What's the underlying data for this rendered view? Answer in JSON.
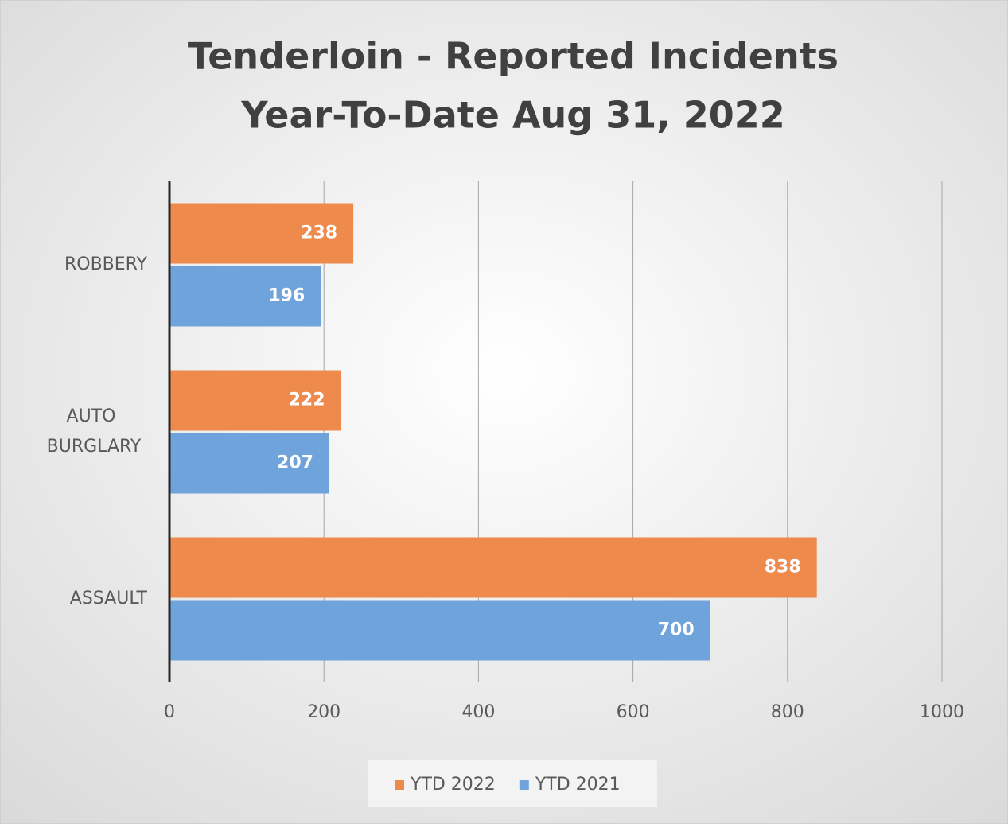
{
  "chart_data": {
    "type": "bar",
    "orientation": "horizontal",
    "title": "Tenderloin - Reported Incidents",
    "subtitle": "Year-To-Date Aug 31, 2022",
    "categories": [
      "ROBBERY",
      "AUTO BURGLARY",
      "ASSAULT"
    ],
    "series": [
      {
        "name": "YTD 2022",
        "color": "#ed8a4c",
        "values": [
          238,
          222,
          838
        ]
      },
      {
        "name": "YTD 2021",
        "color": "#6fa3dc",
        "values": [
          196,
          207,
          700
        ]
      }
    ],
    "xlim": [
      0,
      1000
    ],
    "xticks": [
      0,
      200,
      400,
      600,
      800,
      1000
    ],
    "grid": true,
    "legend": "bottom"
  }
}
